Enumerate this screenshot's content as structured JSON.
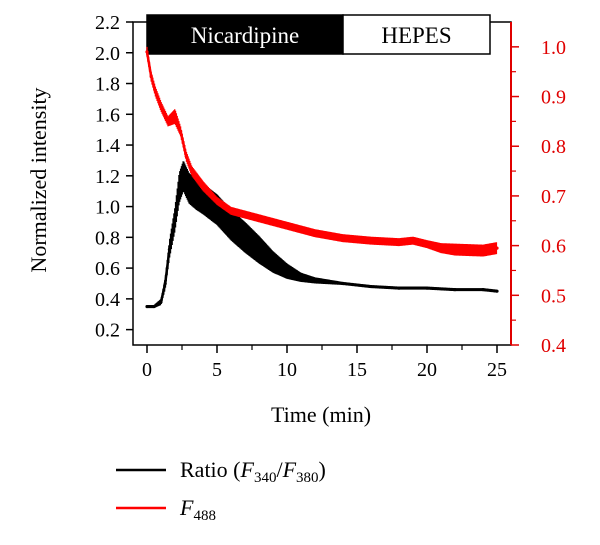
{
  "chart_data": {
    "type": "line",
    "xlabel": "Time (min)",
    "ylabel_left": "Normalized intensity",
    "xlim": [
      -1,
      26
    ],
    "ylim_left": [
      0.1,
      2.2
    ],
    "ylim_right": [
      0.4,
      1.05
    ],
    "xticks": [
      "0",
      "5",
      "10",
      "15",
      "20",
      "25"
    ],
    "yticks_left": [
      "0.2",
      "0.4",
      "0.6",
      "0.8",
      "1.0",
      "1.2",
      "1.4",
      "1.6",
      "1.8",
      "2.0",
      "2.2"
    ],
    "yticks_right": [
      "0.4",
      "0.5",
      "0.6",
      "0.7",
      "0.8",
      "0.9",
      "1.0"
    ],
    "right_axis_color": "#e00000",
    "bars": [
      {
        "label": "Nicardipine",
        "x_start": 0,
        "x_end": 14.0,
        "fill": "#000000",
        "text_color": "#ffffff"
      },
      {
        "label": "HEPES",
        "x_start": 14.0,
        "x_end": 24.5,
        "fill": "#ffffff",
        "text_color": "#000000"
      }
    ],
    "series": [
      {
        "key": "ratio",
        "axis": "left",
        "color": "#000000",
        "x": [
          0,
          0.5,
          1.0,
          1.3,
          1.6,
          2.0,
          2.3,
          2.6,
          3.0,
          3.5,
          4.0,
          5.0,
          6.0,
          7.0,
          8.0,
          9.0,
          10.0,
          11.0,
          12.0,
          14.0,
          16.0,
          18.0,
          20.0,
          22.0,
          24.0,
          25.0
        ],
        "y": [
          0.35,
          0.35,
          0.38,
          0.5,
          0.72,
          0.92,
          1.12,
          1.2,
          1.12,
          1.08,
          1.05,
          0.98,
          0.88,
          0.8,
          0.72,
          0.64,
          0.58,
          0.54,
          0.52,
          0.5,
          0.48,
          0.47,
          0.47,
          0.46,
          0.46,
          0.45
        ],
        "err": [
          0.01,
          0.01,
          0.02,
          0.04,
          0.06,
          0.08,
          0.1,
          0.1,
          0.1,
          0.1,
          0.1,
          0.1,
          0.1,
          0.1,
          0.09,
          0.07,
          0.05,
          0.03,
          0.02,
          0.01,
          0.01,
          0.01,
          0.01,
          0.01,
          0.01,
          0.01
        ]
      },
      {
        "key": "f488",
        "axis": "right",
        "color": "#ff0000",
        "x": [
          0,
          0.3,
          0.6,
          1.0,
          1.5,
          2.0,
          2.4,
          2.8,
          3.2,
          4.0,
          5.0,
          6.0,
          8.0,
          10.0,
          12.0,
          14.0,
          16.0,
          18.0,
          19.0,
          20.0,
          21.0,
          22.0,
          24.0,
          25.0
        ],
        "y": [
          0.99,
          0.94,
          0.91,
          0.88,
          0.85,
          0.86,
          0.83,
          0.78,
          0.75,
          0.72,
          0.69,
          0.67,
          0.655,
          0.64,
          0.625,
          0.615,
          0.61,
          0.607,
          0.61,
          0.603,
          0.595,
          0.592,
          0.59,
          0.595
        ],
        "err": [
          0.01,
          0.01,
          0.01,
          0.01,
          0.01,
          0.015,
          0.01,
          0.01,
          0.01,
          0.01,
          0.008,
          0.008,
          0.008,
          0.008,
          0.008,
          0.008,
          0.008,
          0.008,
          0.008,
          0.008,
          0.01,
          0.012,
          0.012,
          0.012
        ]
      }
    ],
    "legend": {
      "position": "bottom",
      "entries": [
        {
          "key": "ratio",
          "text": "Ratio (F340/F380)",
          "color": "#000000"
        },
        {
          "key": "f488",
          "text": "F488",
          "color": "#ff0000"
        }
      ]
    }
  },
  "legend_parts": {
    "ratio_prefix": "Ratio (",
    "ratio_f1": "F",
    "ratio_s1": "340",
    "ratio_slash": "/",
    "ratio_f2": "F",
    "ratio_s2": "380",
    "ratio_suffix": ")",
    "f488_f": "F",
    "f488_s": "488"
  }
}
